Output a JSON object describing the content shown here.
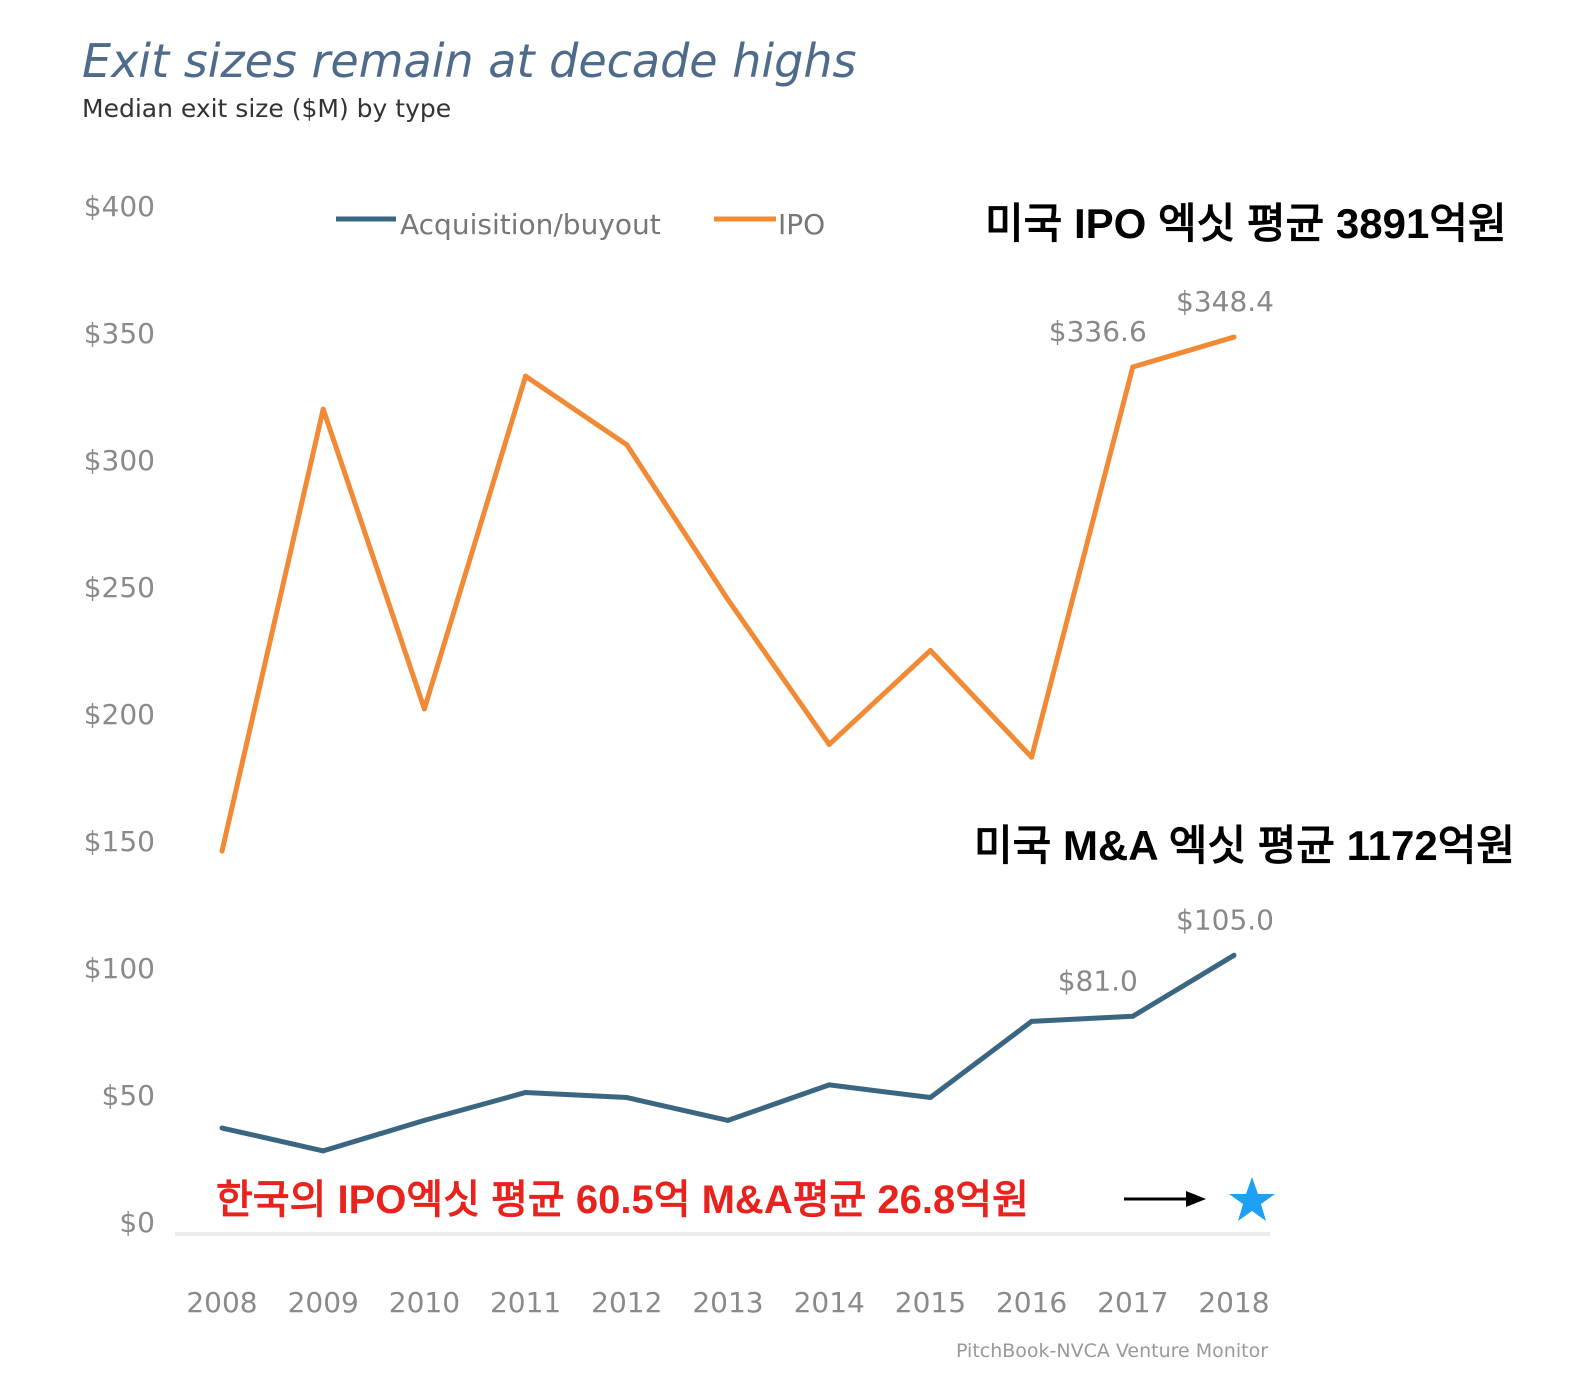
{
  "chart_data": {
    "type": "line",
    "title": "Exit sizes remain at decade highs",
    "subtitle": "Median exit size ($M) by type",
    "xlabel": "",
    "ylabel": "",
    "x": [
      "2008",
      "2009",
      "2010",
      "2011",
      "2012",
      "2013",
      "2014",
      "2015",
      "2016",
      "2017",
      "2018"
    ],
    "ylim": [
      0,
      400
    ],
    "yticks": [
      "$0",
      "$50",
      "$100",
      "$150",
      "$200",
      "$250",
      "$300",
      "$350",
      "$400"
    ],
    "ytick_values": [
      0,
      50,
      100,
      150,
      200,
      250,
      300,
      350,
      400
    ],
    "grid": false,
    "legend_position": "top-center",
    "series": [
      {
        "name": "Acquisition/buyout",
        "color": "#3b6681",
        "values": [
          37,
          28,
          40,
          51,
          49,
          40,
          54,
          49,
          79,
          81.0,
          105.0
        ]
      },
      {
        "name": "IPO",
        "color": "#f28a35",
        "values": [
          146,
          320,
          202,
          333,
          306,
          245,
          188,
          225,
          183,
          336.6,
          348.4
        ]
      }
    ],
    "data_labels": [
      {
        "series": "IPO",
        "x": "2017",
        "text": "$336.6"
      },
      {
        "series": "IPO",
        "x": "2018",
        "text": "$348.4"
      },
      {
        "series": "Acquisition/buyout",
        "x": "2017",
        "text": "$81.0"
      },
      {
        "series": "Acquisition/buyout",
        "x": "2018",
        "text": "$105.0"
      }
    ],
    "annotations": {
      "us_ipo": "미국 IPO 엑싯 평균 3891억원",
      "us_ma": "미국 M&A 엑싯 평균 1172억원",
      "korea": "한국의 IPO엑싯 평균 60.5억 M&A평균 26.8억원"
    },
    "source": "PitchBook-NVCA Venture Monitor",
    "colors": {
      "annotation_red": "#e8231e",
      "star": "#1ea0f5"
    }
  }
}
